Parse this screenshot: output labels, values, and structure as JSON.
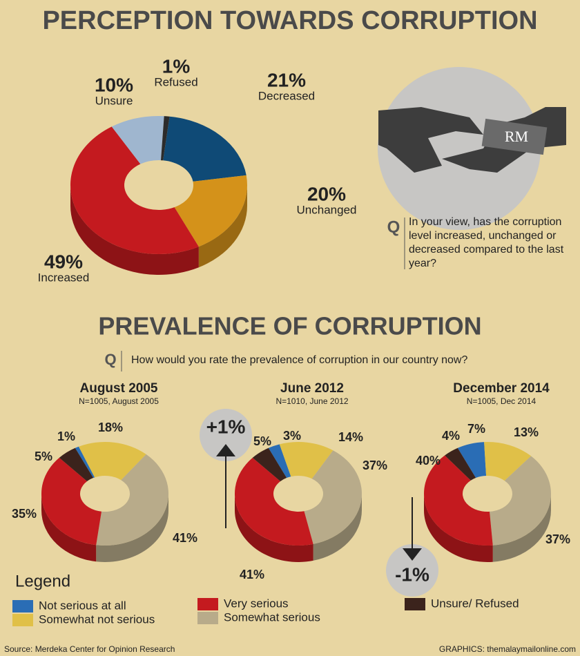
{
  "chart_data": [
    {
      "type": "donut",
      "title": "PERCEPTION TOWARDS CORRUPTION",
      "question_marker": "Q",
      "question": "In your view, has the corruption level increased, unchanged or decreased compared to the last year?",
      "icon_text": "RM",
      "categories": [
        "Decreased",
        "Unchanged",
        "Increased",
        "Unsure",
        "Refused"
      ],
      "values": [
        21,
        20,
        49,
        10,
        1
      ],
      "value_labels": [
        "21%",
        "20%",
        "49%",
        "10%",
        "1%"
      ],
      "colors": [
        "#0f4a76",
        "#d4921a",
        "#c41a1f",
        "#9fb6cf",
        "#2b2b2b"
      ]
    },
    {
      "type": "donut",
      "title": "August 2005",
      "subtitle": "N=1005, August 2005",
      "values": [
        1,
        18,
        35,
        41,
        5
      ],
      "value_labels": [
        "1%",
        "18%",
        "35%",
        "41%",
        "5%"
      ]
    },
    {
      "type": "donut",
      "title": "June 2012",
      "subtitle": "N=1010, June 2012",
      "annotation": "+1%",
      "values": [
        3,
        14,
        41,
        37,
        5
      ],
      "value_labels": [
        "3%",
        "14%",
        "41%",
        "37%",
        "5%"
      ]
    },
    {
      "type": "donut",
      "title": "December 2014",
      "subtitle": "N=1005, Dec 2014",
      "annotation": "-1%",
      "values": [
        7,
        13,
        40,
        37,
        4
      ],
      "value_labels": [
        "7%",
        "13%",
        "40%",
        "37%",
        "4%"
      ]
    }
  ],
  "prevalence": {
    "title": "PREVALENCE OF CORRUPTION",
    "question_marker": "Q",
    "question": "How would you rate the prevalence of corruption in our country now?"
  },
  "legend": {
    "title": "Legend",
    "categories": [
      "Not serious at all",
      "Somewhat not serious",
      "Very serious",
      "Somewhat serious",
      "Unsure/ Refused"
    ],
    "colors": [
      "#2a6db5",
      "#e0c048",
      "#c41a1f",
      "#b8ab8a",
      "#3b231c"
    ]
  },
  "source": "Source: Merdeka Center for Opinion Research",
  "credit": "GRAPHICS: themalaymailonline.com"
}
